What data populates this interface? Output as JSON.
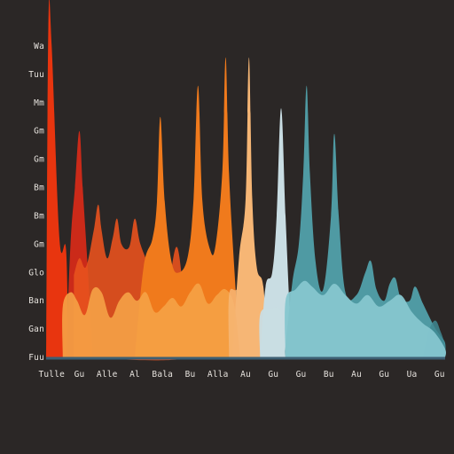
{
  "colors": {
    "background": "#2b2726",
    "axis": "#3d5f73",
    "tick_text": "#e6e2dd",
    "red": "#e8350f",
    "crimson": "#d42a18",
    "orange_red": "#e8521e",
    "orange": "#f07a1c",
    "light_orange": "#f5a246",
    "peach": "#f6b675",
    "pale_blue": "#c9dde3",
    "teal": "#4f9aa3",
    "teal_dark": "#3f8a93",
    "light_teal": "#86c6cf"
  },
  "chart_data": {
    "type": "area",
    "title": "",
    "xlabel": "",
    "ylabel": "",
    "grid": false,
    "legend": "none",
    "ylim": [
      0,
      12
    ],
    "y_tick_values": [
      0,
      1,
      2,
      3,
      4,
      5,
      6,
      7,
      8,
      9,
      10,
      11
    ],
    "y_tick_labels": [
      "Fuu",
      "Gan",
      "Ban",
      "Glo",
      "Gm",
      "Bm",
      "Bm",
      "Gm",
      "Gm",
      "Mm",
      "Tuu",
      "Wa"
    ],
    "x_tick_labels": [
      "Tulle",
      "Gu",
      "Alle",
      "Al",
      "Bala",
      "Bu",
      "Alla",
      "Au",
      "Gu",
      "Gu",
      "Bu",
      "Au",
      "Gu",
      "Ua",
      "Gu"
    ],
    "x_tick_positions": [
      0.5,
      3,
      5.5,
      8,
      10.5,
      13,
      15.5,
      18,
      20.5,
      23,
      25.5,
      28,
      30.5,
      33,
      35.5
    ],
    "xlim": [
      0,
      36
    ],
    "series": [
      {
        "color": "red",
        "opacity": 1,
        "points": [
          [
            0,
            0
          ],
          [
            0.2,
            11.7
          ],
          [
            0.5,
            11.0
          ],
          [
            1.2,
            4.2
          ],
          [
            1.8,
            3.8
          ],
          [
            2.0,
            0
          ]
        ]
      },
      {
        "color": "crimson",
        "opacity": 0.95,
        "points": [
          [
            1.8,
            0
          ],
          [
            2.2,
            4.0
          ],
          [
            2.6,
            6.0
          ],
          [
            3.0,
            8.0
          ],
          [
            3.3,
            6.0
          ],
          [
            3.7,
            3.5
          ],
          [
            4.2,
            0
          ]
        ]
      },
      {
        "color": "orange_red",
        "opacity": 0.9,
        "points": [
          [
            2.5,
            2.9
          ],
          [
            3.0,
            3.5
          ],
          [
            3.6,
            3.2
          ],
          [
            4.3,
            4.5
          ],
          [
            4.7,
            5.4
          ],
          [
            5.0,
            4.5
          ],
          [
            5.5,
            3.5
          ],
          [
            6.0,
            4.2
          ],
          [
            6.4,
            4.9
          ],
          [
            6.8,
            4.0
          ],
          [
            7.5,
            3.9
          ],
          [
            8.0,
            4.9
          ],
          [
            8.5,
            4.0
          ],
          [
            9.5,
            3.0
          ],
          [
            10.2,
            2.1
          ],
          [
            11.0,
            2.5
          ],
          [
            11.8,
            3.9
          ],
          [
            12.5,
            2.0
          ],
          [
            13.0,
            1.3
          ],
          [
            13.0,
            0
          ],
          [
            2.5,
            0
          ]
        ]
      },
      {
        "color": "orange",
        "opacity": 1,
        "points": [
          [
            8.0,
            0
          ],
          [
            8.8,
            3.2
          ],
          [
            9.6,
            4.2
          ],
          [
            10.0,
            5.5
          ],
          [
            10.3,
            8.5
          ],
          [
            10.7,
            5.5
          ],
          [
            11.3,
            3.4
          ],
          [
            12.0,
            3.0
          ],
          [
            12.8,
            3.6
          ],
          [
            13.3,
            5.6
          ],
          [
            13.7,
            9.6
          ],
          [
            14.1,
            5.5
          ],
          [
            14.8,
            3.8
          ],
          [
            15.3,
            4.0
          ],
          [
            15.9,
            6.6
          ],
          [
            16.2,
            10.6
          ],
          [
            16.5,
            6.5
          ],
          [
            17.0,
            3.0
          ],
          [
            17.5,
            0
          ]
        ]
      },
      {
        "color": "peach",
        "opacity": 1,
        "points": [
          [
            16.8,
            0
          ],
          [
            17.4,
            3.5
          ],
          [
            18.0,
            5.6
          ],
          [
            18.3,
            10.6
          ],
          [
            18.6,
            5.6
          ],
          [
            19.0,
            3.2
          ],
          [
            19.6,
            2.5
          ],
          [
            20.0,
            0
          ]
        ]
      },
      {
        "color": "pale_blue",
        "opacity": 1,
        "points": [
          [
            19.3,
            0
          ],
          [
            19.8,
            2.5
          ],
          [
            20.4,
            3.0
          ],
          [
            20.8,
            5.0
          ],
          [
            21.2,
            8.8
          ],
          [
            21.6,
            5.0
          ],
          [
            22.0,
            1.5
          ],
          [
            22.3,
            0
          ]
        ]
      },
      {
        "color": "teal",
        "opacity": 1,
        "points": [
          [
            21.5,
            0
          ],
          [
            22.2,
            2.6
          ],
          [
            22.8,
            4.0
          ],
          [
            23.2,
            6.5
          ],
          [
            23.5,
            9.6
          ],
          [
            23.8,
            6.5
          ],
          [
            24.3,
            3.4
          ],
          [
            25.0,
            2.4
          ],
          [
            25.7,
            5.0
          ],
          [
            26.0,
            7.9
          ],
          [
            26.4,
            5.0
          ],
          [
            27.0,
            2.3
          ],
          [
            28.0,
            2.2
          ],
          [
            28.8,
            3.0
          ],
          [
            29.3,
            3.4
          ],
          [
            29.8,
            2.4
          ],
          [
            30.5,
            2.0
          ],
          [
            31.0,
            2.6
          ],
          [
            31.5,
            2.8
          ],
          [
            32.0,
            2.1
          ],
          [
            32.8,
            2.0
          ],
          [
            33.3,
            2.5
          ],
          [
            34.0,
            1.9
          ],
          [
            35.0,
            1.1
          ],
          [
            35.5,
            0.8
          ],
          [
            36,
            0.5
          ],
          [
            36,
            0
          ]
        ]
      },
      {
        "color": "teal_dark",
        "opacity": 0.85,
        "points": [
          [
            34.0,
            0
          ],
          [
            34.5,
            0.9
          ],
          [
            35.1,
            1.3
          ],
          [
            35.6,
            0.9
          ],
          [
            36.0,
            0.4
          ],
          [
            36.0,
            0
          ]
        ]
      },
      {
        "color": "light_orange",
        "opacity": 0.9,
        "points": [
          [
            1.5,
            0
          ],
          [
            1.5,
            1.8
          ],
          [
            2.2,
            2.3
          ],
          [
            2.8,
            2.0
          ],
          [
            3.5,
            1.5
          ],
          [
            4.2,
            2.4
          ],
          [
            5.0,
            2.3
          ],
          [
            5.8,
            1.4
          ],
          [
            6.6,
            2.0
          ],
          [
            7.4,
            2.3
          ],
          [
            8.2,
            2.0
          ],
          [
            9.0,
            2.3
          ],
          [
            9.8,
            1.6
          ],
          [
            10.6,
            1.8
          ],
          [
            11.4,
            2.1
          ],
          [
            12.2,
            1.8
          ],
          [
            13.0,
            2.3
          ],
          [
            13.8,
            2.6
          ],
          [
            14.6,
            1.9
          ],
          [
            15.4,
            2.2
          ],
          [
            16.2,
            2.4
          ],
          [
            17.0,
            1.8
          ],
          [
            17.5,
            0
          ]
        ]
      },
      {
        "color": "peach",
        "opacity": 0.85,
        "points": [
          [
            16.5,
            0
          ],
          [
            16.5,
            2.2
          ],
          [
            17.2,
            2.4
          ],
          [
            18.0,
            2.9
          ],
          [
            18.8,
            2.4
          ],
          [
            19.3,
            1.9
          ],
          [
            19.3,
            0
          ]
        ]
      },
      {
        "color": "pale_blue",
        "opacity": 0.95,
        "points": [
          [
            19.3,
            0
          ],
          [
            19.3,
            1.5
          ],
          [
            20.2,
            1.7
          ],
          [
            21.2,
            1.6
          ],
          [
            21.6,
            0
          ]
        ]
      },
      {
        "color": "light_teal",
        "opacity": 0.95,
        "points": [
          [
            21.6,
            0
          ],
          [
            21.6,
            2.0
          ],
          [
            22.5,
            2.4
          ],
          [
            23.3,
            2.7
          ],
          [
            24.0,
            2.5
          ],
          [
            25.0,
            2.2
          ],
          [
            26.0,
            2.6
          ],
          [
            27.0,
            2.2
          ],
          [
            28.0,
            1.9
          ],
          [
            29.0,
            2.2
          ],
          [
            30.0,
            1.8
          ],
          [
            31.0,
            2.0
          ],
          [
            32.0,
            2.2
          ],
          [
            33.0,
            1.6
          ],
          [
            34.0,
            1.2
          ],
          [
            35.0,
            0.9
          ],
          [
            36.0,
            0.3
          ],
          [
            36.0,
            0
          ]
        ]
      }
    ]
  }
}
